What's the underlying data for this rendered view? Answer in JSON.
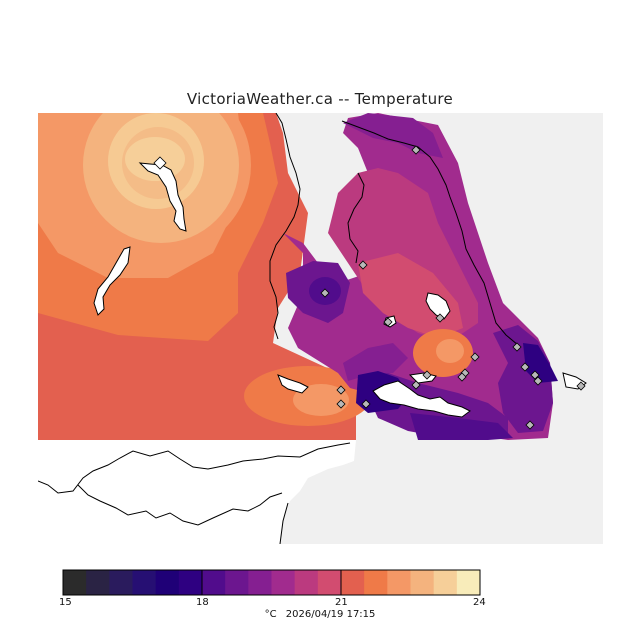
{
  "title": "VictoriaWeather.ca -- Temperature",
  "units": "°C",
  "timestamp": "2026/04/19 17:15",
  "colorbar": {
    "min": 15,
    "max": 24,
    "tick_labels": [
      "15",
      "18",
      "21",
      "24"
    ],
    "colors": [
      "#2b2b2b",
      "#2a2344",
      "#2a1b5d",
      "#260f73",
      "#1f0077",
      "#2e0081",
      "#510c8c",
      "#6c168f",
      "#851f91",
      "#a12b8e",
      "#bb3a7f",
      "#d24c70",
      "#e3604f",
      "#ef7a48",
      "#f49866",
      "#f4b37e",
      "#f6cf99",
      "#f8ecba"
    ]
  },
  "map": {
    "background": "#f0f0f0",
    "land_color": "#ffffff",
    "station_color": "#b8b8b8"
  }
}
